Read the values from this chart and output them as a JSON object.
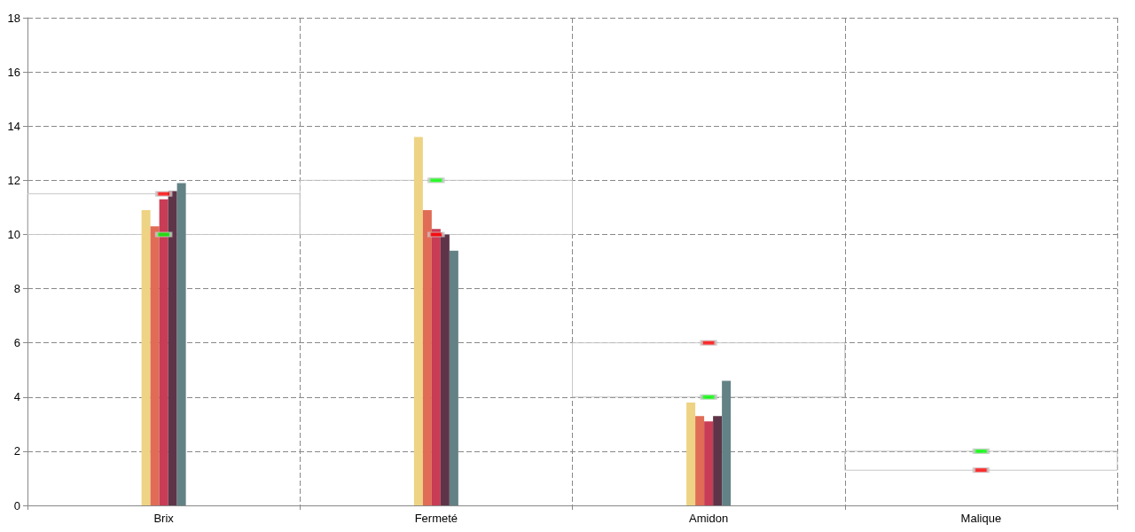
{
  "chart_data": {
    "type": "bar",
    "categories": [
      "Brix",
      "Fermeté",
      "Amidon",
      "Malique"
    ],
    "series": [
      {
        "color": "#eed384",
        "values": [
          10.9,
          13.6,
          3.8,
          0
        ]
      },
      {
        "color": "#e06c55",
        "values": [
          10.3,
          10.9,
          3.3,
          0
        ]
      },
      {
        "color": "#c83c55",
        "values": [
          11.3,
          10.2,
          3.1,
          0
        ]
      },
      {
        "color": "#5e3548",
        "values": [
          11.6,
          10.0,
          3.3,
          0
        ]
      },
      {
        "color": "#638285",
        "values": [
          11.9,
          9.4,
          4.6,
          0
        ]
      },
      {
        "type": "bar",
        "color": "#c8c8c8",
        "base": [
          10,
          10,
          4,
          1.3
        ],
        "values": [
          1.5,
          2,
          2,
          0.7
        ]
      },
      {
        "type": "scatter",
        "color": "#ff0000",
        "x": [
          "Brix",
          "Fermeté",
          "Amidon",
          "Malique"
        ],
        "values": [
          11.5,
          10,
          6,
          1.3
        ]
      },
      {
        "type": "scatter",
        "color": "#00ff00",
        "x": [
          "Brix",
          "Fermeté",
          "Amidon",
          "Malique"
        ],
        "values": [
          10,
          12,
          4,
          2
        ]
      }
    ],
    "marker": "square",
    "ylim": [
      0,
      18
    ],
    "yticks": [
      0,
      2,
      4,
      6,
      8,
      10,
      12,
      14,
      16,
      18
    ],
    "grid": true
  }
}
